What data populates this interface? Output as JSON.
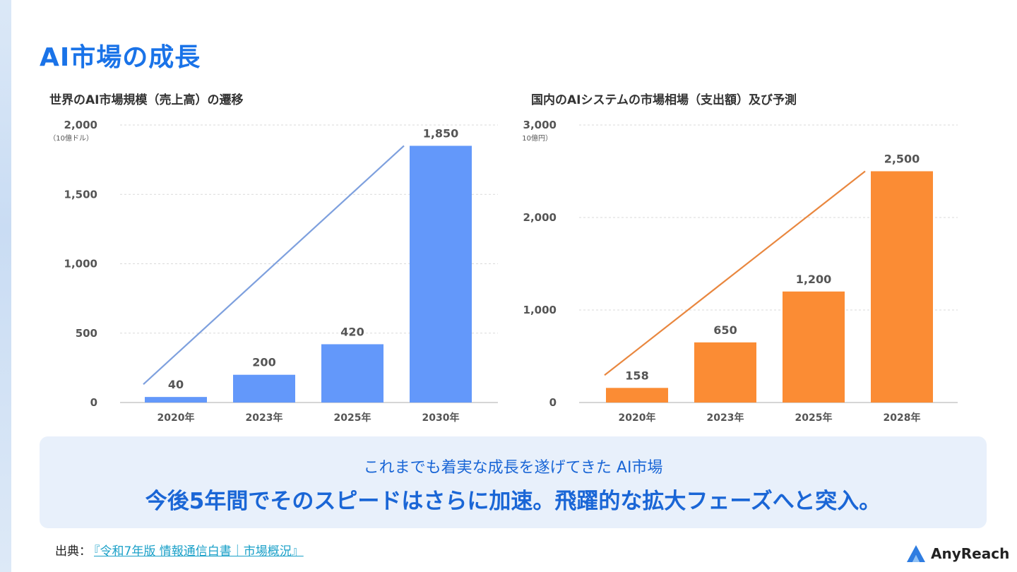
{
  "page": {
    "title": "AI市場の成長",
    "summary_line1": "これまでも着実な成長を遂げてきた AI市場",
    "summary_line2": "今後5年間でそのスピードはさらに加速。飛躍的な拡大フェーズへと突入。",
    "source_label": "出典：",
    "source_link": "『令和7年版 情報通信白書｜市場概況』",
    "logo_text": "AnyReach",
    "logo_icon": "anyreach-logo-icon"
  },
  "chart_data": [
    {
      "type": "bar",
      "title": "世界のAI市場規模（売上高）の遷移",
      "unit": "（10億ドル）",
      "categories": [
        "2020年",
        "2023年",
        "2025年",
        "2030年"
      ],
      "values": [
        40,
        200,
        420,
        1850
      ],
      "value_labels": [
        "40",
        "200",
        "420",
        "1,850"
      ],
      "yticks": [
        0,
        500,
        1000,
        1500,
        2000
      ],
      "ytick_labels": [
        "0",
        "500",
        "1,000",
        "1,500",
        "2,000"
      ],
      "ylim": [
        0,
        2000
      ],
      "bar_color": "#6398fa",
      "trend_color": "#7ea0de",
      "grid": true
    },
    {
      "type": "bar",
      "title": "国内のAIシステムの市場相場（支出額）及び予測",
      "unit": "（10億円）",
      "categories": [
        "2020年",
        "2023年",
        "2025年",
        "2028年"
      ],
      "values": [
        158,
        650,
        1200,
        2500
      ],
      "value_labels": [
        "158",
        "650",
        "1,200",
        "2,500"
      ],
      "yticks": [
        0,
        1000,
        2000,
        3000
      ],
      "ytick_labels": [
        "0",
        "1,000",
        "2,000",
        "3,000"
      ],
      "ylim": [
        0,
        3000
      ],
      "bar_color": "#fb8c34",
      "trend_color": "#e9873f",
      "grid": true
    }
  ]
}
